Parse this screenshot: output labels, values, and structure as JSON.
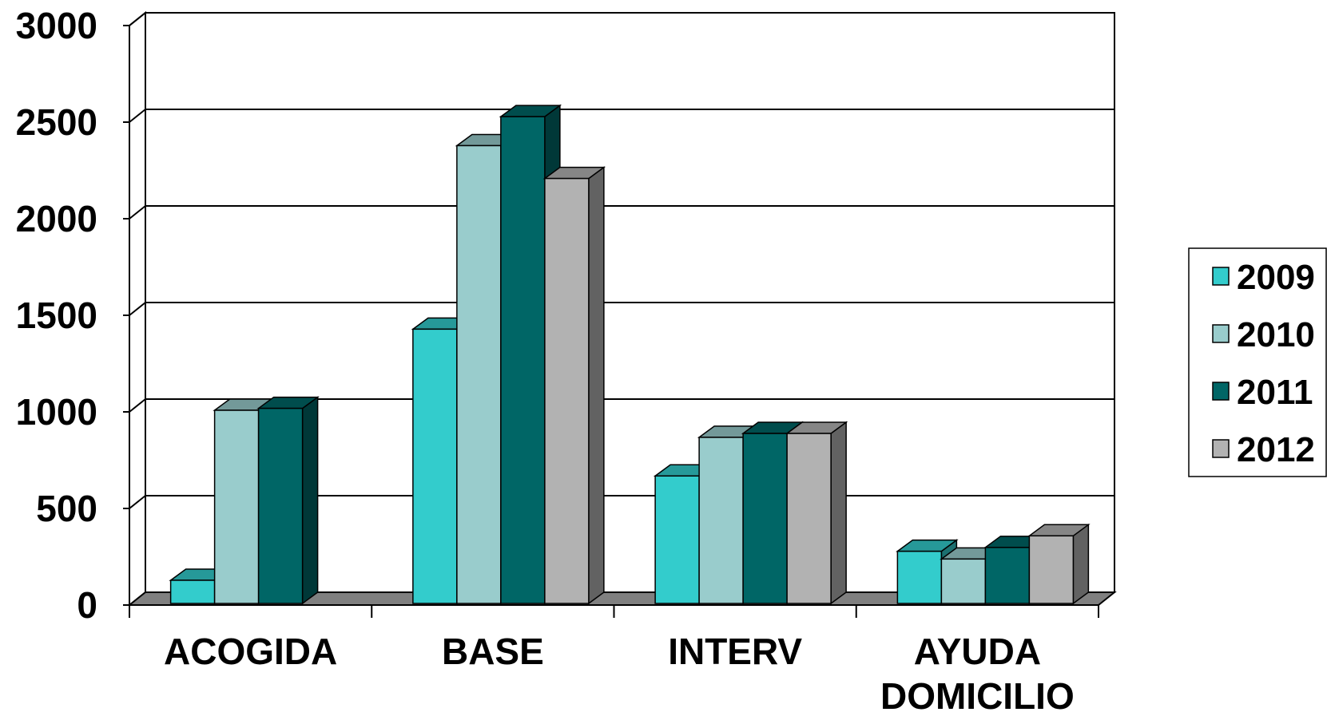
{
  "chart_data": {
    "type": "bar",
    "title": "",
    "xlabel": "",
    "ylabel": "",
    "ylim": [
      0,
      3000
    ],
    "yticks": [
      0,
      500,
      1000,
      1500,
      2000,
      2500,
      3000
    ],
    "grid": true,
    "legend_position": "right",
    "categories": [
      [
        "ACOGIDA"
      ],
      [
        "BASE"
      ],
      [
        "INTERV"
      ],
      [
        "AYUDA",
        "DOMICILIO"
      ]
    ],
    "series": [
      {
        "name": "2009",
        "color": "#33CCCC",
        "values": [
          120,
          1420,
          660,
          270
        ]
      },
      {
        "name": "2010",
        "color": "#99CCCC",
        "values": [
          1000,
          2370,
          860,
          230
        ]
      },
      {
        "name": "2011",
        "color": "#006666",
        "values": [
          1010,
          2520,
          880,
          290
        ]
      },
      {
        "name": "2012",
        "color": "#B2B2B2",
        "values": [
          null,
          2200,
          880,
          350
        ]
      }
    ]
  }
}
